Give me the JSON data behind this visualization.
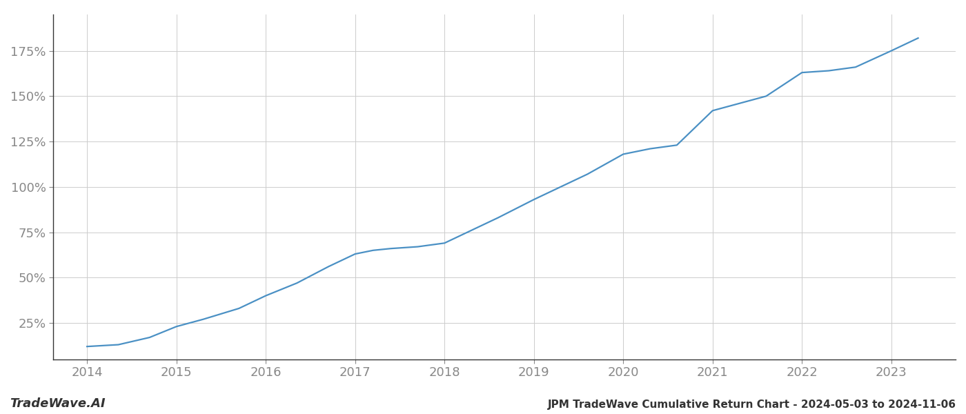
{
  "title": "JPM TradeWave Cumulative Return Chart - 2024-05-03 to 2024-11-06",
  "watermark": "TradeWave.AI",
  "line_color": "#4a90c4",
  "background_color": "#ffffff",
  "grid_color": "#cccccc",
  "text_color": "#888888",
  "x_years": [
    2014.0,
    2014.35,
    2014.7,
    2015.0,
    2015.3,
    2015.7,
    2016.0,
    2016.35,
    2016.7,
    2017.0,
    2017.2,
    2017.4,
    2017.7,
    2018.0,
    2018.3,
    2018.6,
    2019.0,
    2019.3,
    2019.6,
    2020.0,
    2020.3,
    2020.6,
    2021.0,
    2021.3,
    2021.6,
    2022.0,
    2022.3,
    2022.6,
    2023.0,
    2023.3
  ],
  "y_values": [
    12,
    13,
    17,
    23,
    27,
    33,
    40,
    47,
    56,
    63,
    65,
    66,
    67,
    69,
    76,
    83,
    93,
    100,
    107,
    118,
    121,
    123,
    142,
    146,
    150,
    163,
    164,
    166,
    175,
    182
  ],
  "yticks": [
    25,
    50,
    75,
    100,
    125,
    150,
    175
  ],
  "ylim": [
    5,
    195
  ],
  "xlim_start": 2013.62,
  "xlim_end": 2023.72,
  "title_fontsize": 11,
  "tick_fontsize": 13,
  "watermark_fontsize": 13,
  "line_width": 1.6
}
